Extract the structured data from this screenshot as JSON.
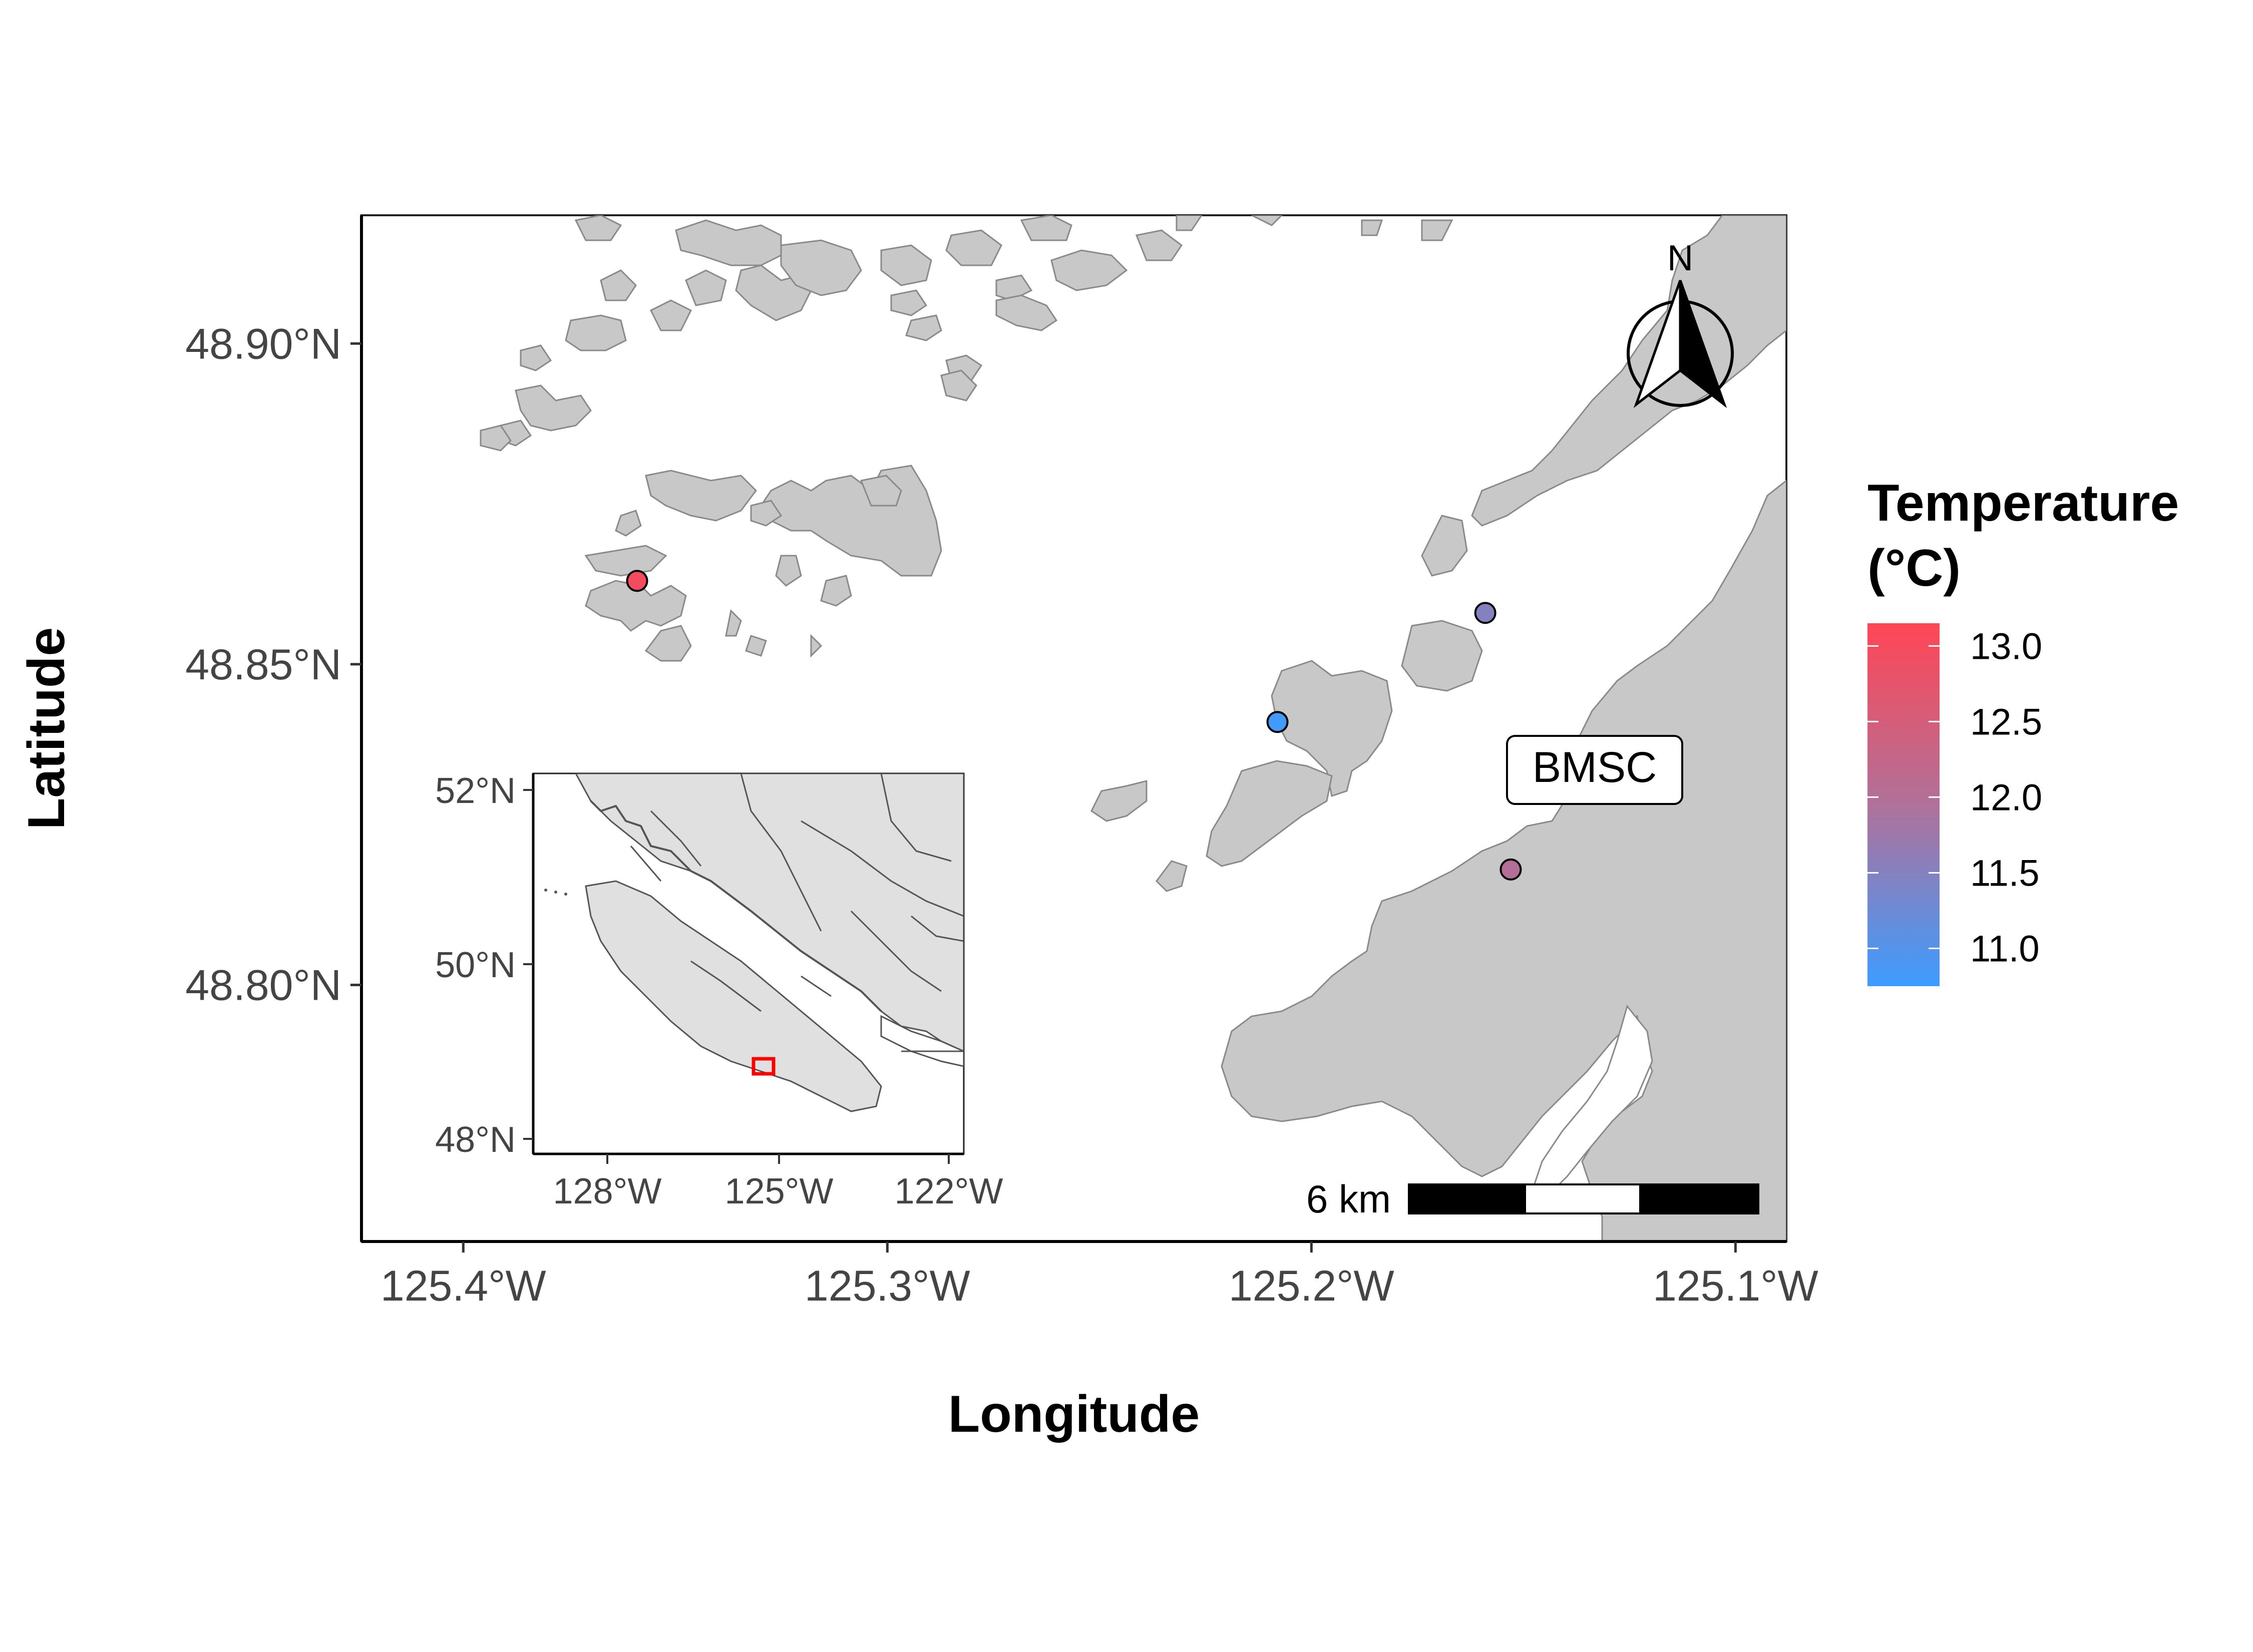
{
  "map": {
    "x_axis": {
      "title": "Longitude",
      "ticks": [
        "125.4°W",
        "125.3°W",
        "125.2°W",
        "125.1°W"
      ],
      "values": [
        -125.4,
        -125.3,
        -125.2,
        -125.1
      ],
      "range": [
        -125.424,
        -125.088
      ]
    },
    "y_axis": {
      "title": "Latitude",
      "ticks": [
        "48.90°N",
        "48.85°N",
        "48.80°N"
      ],
      "values": [
        48.9,
        48.85,
        48.8
      ],
      "range": [
        48.76,
        48.92
      ]
    },
    "points": [
      {
        "lon": -125.359,
        "lat": 48.863,
        "temperature": 13.0
      },
      {
        "lon": -125.159,
        "lat": 48.858,
        "temperature": 11.5
      },
      {
        "lon": -125.208,
        "lat": 48.841,
        "temperature": 10.8
      },
      {
        "lon": -125.153,
        "lat": 48.818,
        "temperature": 12.0
      }
    ],
    "label": {
      "text": "BMSC",
      "lon": -125.148,
      "lat": 48.834
    },
    "north_arrow": {
      "letter": "N",
      "placement": "top-right"
    },
    "scale_bar": {
      "label": "6 km",
      "placement": "bottom-right"
    }
  },
  "legend": {
    "title_line1": "Temperature",
    "title_line2": "(°C)",
    "ticks": [
      "13.0",
      "12.5",
      "12.0",
      "11.5",
      "11.0"
    ],
    "values": [
      13.0,
      12.5,
      12.0,
      11.5,
      11.0
    ],
    "range": [
      10.75,
      13.15
    ],
    "color_low": "#3d9cff",
    "color_high": "#ff4655"
  },
  "inset": {
    "x_ticks": [
      "128°W",
      "125°W",
      "122°W"
    ],
    "y_ticks": [
      "52°N",
      "50°N",
      "48°N"
    ],
    "highlight_color": "#ff0000"
  },
  "colors": {
    "land": "#c8c8c8",
    "inset_land": "#e0e0e0",
    "water": "#ffffff"
  }
}
